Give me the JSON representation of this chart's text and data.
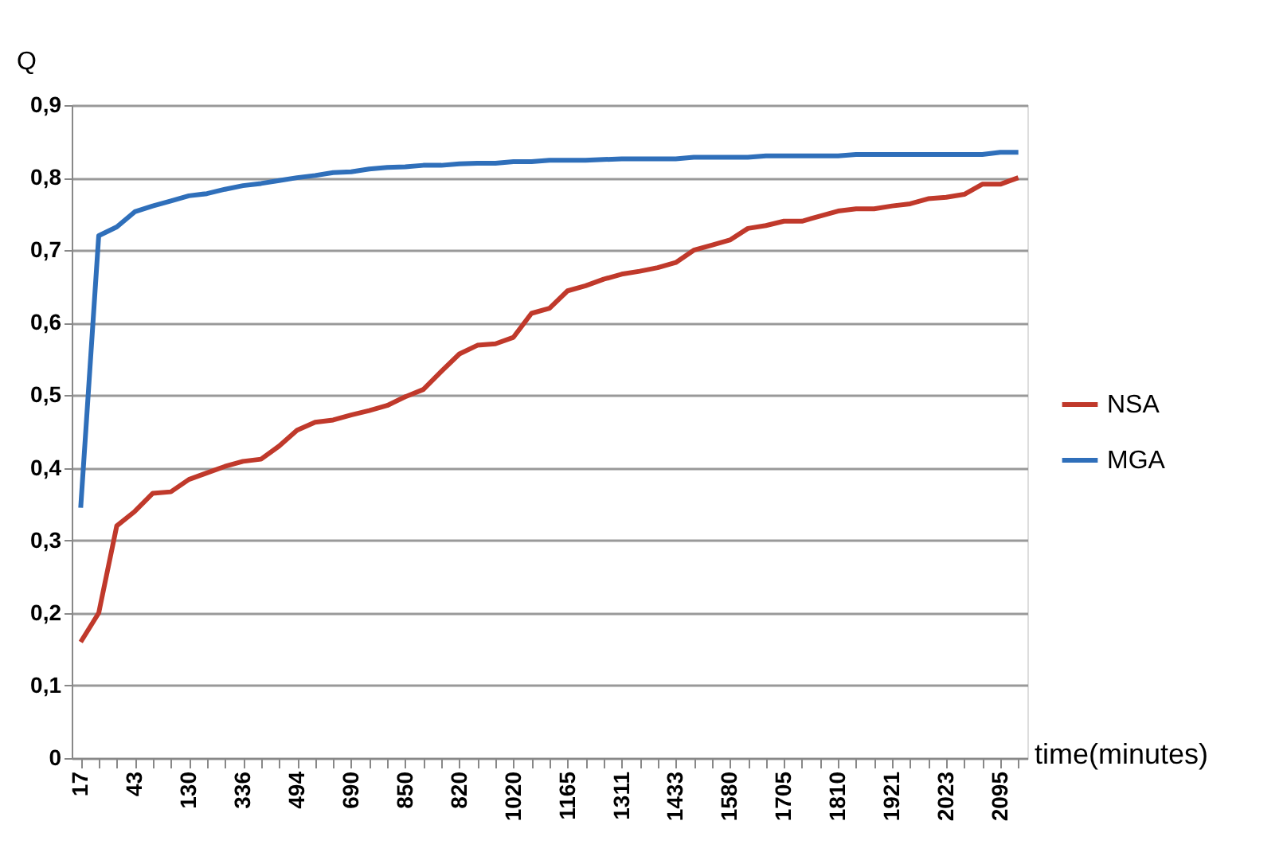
{
  "chart_data": {
    "type": "line",
    "ylabel": "Q",
    "xlabel": "time(minutes)",
    "categories": [
      "17",
      null,
      null,
      "43",
      null,
      null,
      "130",
      null,
      null,
      "336",
      null,
      null,
      "494",
      null,
      null,
      "690",
      null,
      null,
      "850",
      null,
      null,
      "820",
      null,
      null,
      "1020",
      null,
      null,
      "1165",
      null,
      null,
      "1311",
      null,
      null,
      "1433",
      null,
      null,
      "1580",
      null,
      null,
      "1705",
      null,
      null,
      "1810",
      null,
      null,
      "1921",
      null,
      null,
      "2023",
      null,
      null,
      "2095",
      null
    ],
    "series": [
      {
        "name": "NSA",
        "color": "#c0392b",
        "values": [
          0.16,
          0.2,
          0.32,
          0.34,
          0.365,
          0.367,
          0.384,
          0.393,
          0.402,
          0.409,
          0.412,
          0.43,
          0.452,
          0.463,
          0.466,
          0.473,
          0.479,
          0.486,
          0.498,
          0.508,
          0.533,
          0.557,
          0.569,
          0.571,
          0.58,
          0.613,
          0.62,
          0.644,
          0.651,
          0.66,
          0.667,
          0.671,
          0.676,
          0.683,
          0.7,
          0.707,
          0.714,
          0.73,
          0.734,
          0.74,
          0.74,
          0.747,
          0.754,
          0.757,
          0.757,
          0.761,
          0.764,
          0.771,
          0.773,
          0.777,
          0.791,
          0.791,
          0.8
        ]
      },
      {
        "name": "MGA",
        "color": "#2f6fba",
        "values": [
          0.345,
          0.72,
          0.732,
          0.753,
          0.761,
          0.768,
          0.775,
          0.778,
          0.784,
          0.789,
          0.792,
          0.796,
          0.8,
          0.803,
          0.807,
          0.808,
          0.812,
          0.814,
          0.815,
          0.817,
          0.817,
          0.819,
          0.82,
          0.82,
          0.822,
          0.822,
          0.824,
          0.824,
          0.824,
          0.825,
          0.826,
          0.826,
          0.826,
          0.826,
          0.828,
          0.828,
          0.828,
          0.828,
          0.83,
          0.83,
          0.83,
          0.83,
          0.83,
          0.832,
          0.832,
          0.832,
          0.832,
          0.832,
          0.832,
          0.832,
          0.832,
          0.835,
          0.835
        ]
      }
    ],
    "ylim": [
      0,
      0.9
    ],
    "yticks": [
      {
        "value": 0,
        "label": "0"
      },
      {
        "value": 0.1,
        "label": "0,1"
      },
      {
        "value": 0.2,
        "label": "0,2"
      },
      {
        "value": 0.3,
        "label": "0,3"
      },
      {
        "value": 0.4,
        "label": "0,4"
      },
      {
        "value": 0.5,
        "label": "0,5"
      },
      {
        "value": 0.6,
        "label": "0,6"
      },
      {
        "value": 0.7,
        "label": "0,7"
      },
      {
        "value": 0.8,
        "label": "0,8"
      },
      {
        "value": 0.9,
        "label": "0,9"
      }
    ],
    "grid": "y",
    "legend": "right",
    "marker": "none",
    "line_style": "solid"
  }
}
